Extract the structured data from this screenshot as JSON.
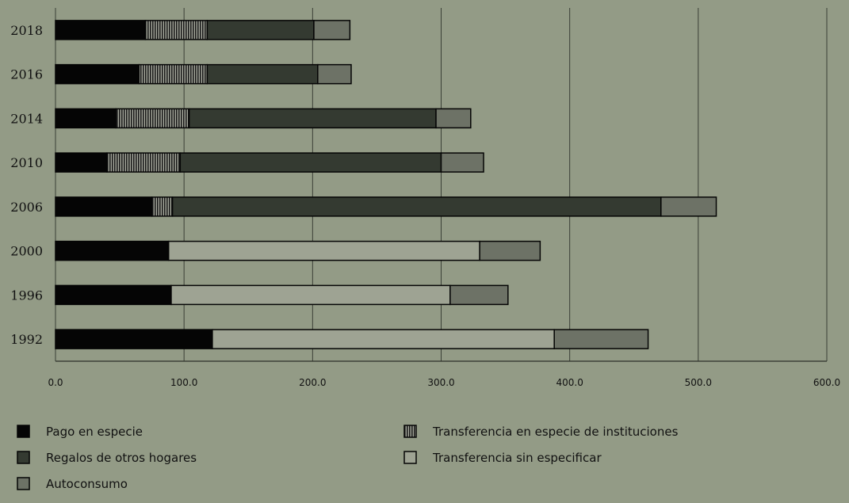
{
  "chart_data": {
    "type": "bar",
    "orientation": "horizontal",
    "stacked": true,
    "categories": [
      "2018",
      "2016",
      "2014",
      "2010",
      "2006",
      "2000",
      "1996",
      "1992"
    ],
    "series": [
      {
        "name": "Pago en especie",
        "pattern": "solid",
        "color": "#050505",
        "values": [
          70,
          65,
          47,
          40,
          75,
          88,
          90,
          122
        ]
      },
      {
        "name": "Transferencia en especie de instituciones",
        "pattern": "vertical-stripes",
        "color": "#4a4a4a",
        "values": [
          48,
          53,
          57,
          57,
          16,
          0,
          0,
          0
        ]
      },
      {
        "name": "Regalos de otros hogares",
        "pattern": "solid",
        "color": "#343a31",
        "values": [
          83,
          86,
          192,
          203,
          380,
          0,
          0,
          0
        ]
      },
      {
        "name": "Transferencia sin especificar",
        "pattern": "solid",
        "color": "#9ea393",
        "values": [
          0,
          0,
          0,
          0,
          0,
          242,
          217,
          266
        ]
      },
      {
        "name": "Autoconsumo",
        "pattern": "solid",
        "color": "#6d7266",
        "values": [
          28,
          26,
          27,
          33,
          43,
          47,
          45,
          73
        ]
      }
    ],
    "xlim": [
      0,
      600
    ],
    "x_ticks": [
      "0.0",
      "100.0",
      "200.0",
      "300.0",
      "400.0",
      "500.0",
      "600.0"
    ],
    "grid": true,
    "legend_position": "bottom",
    "legend_layout": [
      [
        "Pago en especie",
        "Transferencia en especie de instituciones"
      ],
      [
        "Regalos de otros hogares",
        "Transferencia sin especificar"
      ],
      [
        "Autoconsumo"
      ]
    ]
  }
}
